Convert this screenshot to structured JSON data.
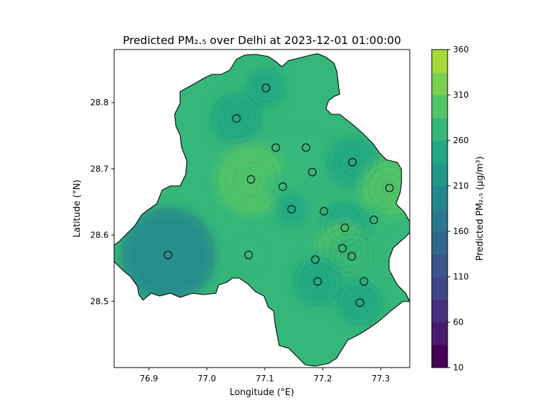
{
  "chart_data": {
    "type": "heatmap",
    "title": "Predicted PM₂.₅ over Delhi at 2023-12-01 01:00:00",
    "xlabel": "Longitude (°E)",
    "ylabel": "Latitude (°N)",
    "xlim": [
      76.84,
      77.35
    ],
    "ylim": [
      28.4,
      28.88
    ],
    "x_ticks": [
      {
        "value": 76.9,
        "label": "76.9"
      },
      {
        "value": 77.0,
        "label": "77.0"
      },
      {
        "value": 77.1,
        "label": "77.1"
      },
      {
        "value": 77.2,
        "label": "77.2"
      },
      {
        "value": 77.3,
        "label": "77.3"
      }
    ],
    "y_ticks": [
      {
        "value": 28.5,
        "label": "28.5"
      },
      {
        "value": 28.6,
        "label": "28.6"
      },
      {
        "value": 28.7,
        "label": "28.7"
      },
      {
        "value": 28.8,
        "label": "28.8"
      }
    ],
    "colorbar": {
      "label": "Predicted PM₂.₅ (µg/m³)",
      "range": [
        10,
        360
      ],
      "ticks": [
        {
          "value": 10,
          "label": "10"
        },
        {
          "value": 60,
          "label": "60"
        },
        {
          "value": 110,
          "label": "110"
        },
        {
          "value": 160,
          "label": "160"
        },
        {
          "value": 210,
          "label": "210"
        },
        {
          "value": 260,
          "label": "260"
        },
        {
          "value": 310,
          "label": "310"
        },
        {
          "value": 360,
          "label": "360"
        }
      ],
      "levels": [
        {
          "from": 10,
          "to": 35,
          "color": "#440154"
        },
        {
          "from": 35,
          "to": 60,
          "color": "#481a6c"
        },
        {
          "from": 60,
          "to": 85,
          "color": "#472f7d"
        },
        {
          "from": 85,
          "to": 110,
          "color": "#414487"
        },
        {
          "from": 110,
          "to": 135,
          "color": "#39568c"
        },
        {
          "from": 135,
          "to": 160,
          "color": "#31688e"
        },
        {
          "from": 160,
          "to": 185,
          "color": "#2a788e"
        },
        {
          "from": 185,
          "to": 210,
          "color": "#23888e"
        },
        {
          "from": 210,
          "to": 235,
          "color": "#1f988b"
        },
        {
          "from": 235,
          "to": 260,
          "color": "#22a884"
        },
        {
          "from": 260,
          "to": 285,
          "color": "#35b779"
        },
        {
          "from": 285,
          "to": 310,
          "color": "#54c568"
        },
        {
          "from": 310,
          "to": 335,
          "color": "#7ad151"
        },
        {
          "from": 335,
          "to": 360,
          "color": "#a5db36"
        },
        {
          "from": 360,
          "to": 385,
          "color": "#d2e21b"
        }
      ]
    },
    "background_value": 262,
    "stations": [
      {
        "lon": 77.102,
        "lat": 28.822,
        "value": 250
      },
      {
        "lon": 77.051,
        "lat": 28.776,
        "value": 240
      },
      {
        "lon": 77.119,
        "lat": 28.732,
        "value": 265
      },
      {
        "lon": 77.171,
        "lat": 28.732,
        "value": 265
      },
      {
        "lon": 77.182,
        "lat": 28.695,
        "value": 265
      },
      {
        "lon": 77.251,
        "lat": 28.71,
        "value": 240
      },
      {
        "lon": 77.076,
        "lat": 28.684,
        "value": 300
      },
      {
        "lon": 77.131,
        "lat": 28.673,
        "value": 268
      },
      {
        "lon": 77.315,
        "lat": 28.671,
        "value": 290
      },
      {
        "lon": 77.146,
        "lat": 28.639,
        "value": 255
      },
      {
        "lon": 77.202,
        "lat": 28.636,
        "value": 262
      },
      {
        "lon": 77.288,
        "lat": 28.623,
        "value": 265
      },
      {
        "lon": 77.238,
        "lat": 28.611,
        "value": 240
      },
      {
        "lon": 76.933,
        "lat": 28.57,
        "value": 205
      },
      {
        "lon": 77.072,
        "lat": 28.57,
        "value": 262
      },
      {
        "lon": 77.234,
        "lat": 28.58,
        "value": 285
      },
      {
        "lon": 77.25,
        "lat": 28.568,
        "value": 280
      },
      {
        "lon": 77.187,
        "lat": 28.563,
        "value": 265
      },
      {
        "lon": 77.191,
        "lat": 28.53,
        "value": 242
      },
      {
        "lon": 77.271,
        "lat": 28.53,
        "value": 262
      },
      {
        "lon": 77.264,
        "lat": 28.498,
        "value": 245
      }
    ]
  }
}
